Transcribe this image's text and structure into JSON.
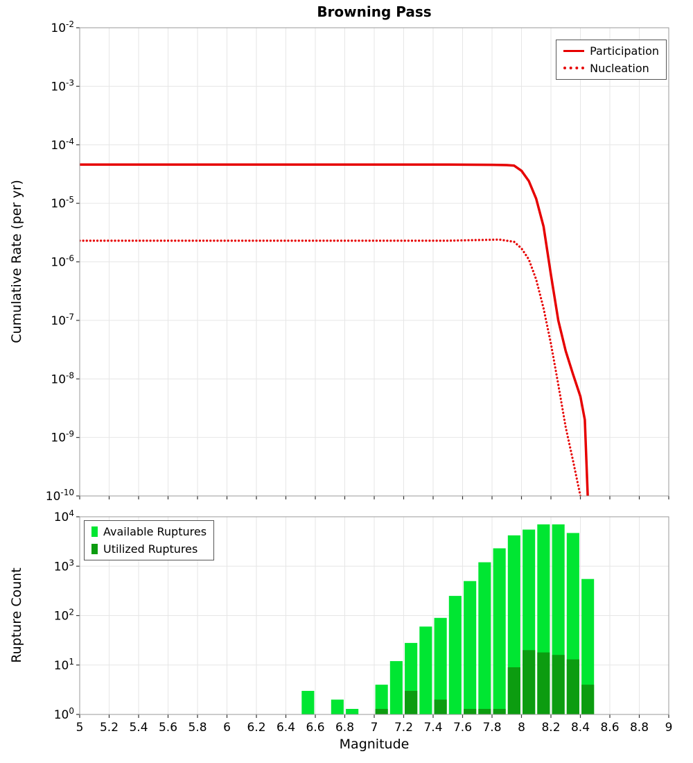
{
  "chart_data": [
    {
      "type": "line",
      "title": "Browning Pass",
      "xlabel": "Magnitude",
      "ylabel": "Cumulative Rate (per yr)",
      "xlim": [
        5,
        9
      ],
      "ylim": [
        1e-10,
        0.01
      ],
      "y_tick_exponents": [
        -2,
        -3,
        -4,
        -5,
        -6,
        -7,
        -8,
        -9,
        -10
      ],
      "x_tick_labels": [
        "5",
        "5.2",
        "5.4",
        "5.6",
        "5.8",
        "6",
        "6.2",
        "6.4",
        "6.6",
        "6.8",
        "7",
        "7.2",
        "7.4",
        "7.6",
        "7.8",
        "8",
        "8.2",
        "8.4",
        "8.6",
        "8.8",
        "9"
      ],
      "grid": true,
      "legend_position": "top-right",
      "series": [
        {
          "name": "Participation",
          "line_style": "solid",
          "color": "#e60000",
          "points": [
            [
              5.0,
              4.6e-05
            ],
            [
              5.5,
              4.6e-05
            ],
            [
              6.0,
              4.6e-05
            ],
            [
              6.5,
              4.6e-05
            ],
            [
              7.0,
              4.6e-05
            ],
            [
              7.5,
              4.6e-05
            ],
            [
              7.8,
              4.55e-05
            ],
            [
              7.9,
              4.5e-05
            ],
            [
              7.95,
              4.4e-05
            ],
            [
              8.0,
              3.6e-05
            ],
            [
              8.05,
              2.4e-05
            ],
            [
              8.1,
              1.2e-05
            ],
            [
              8.15,
              4e-06
            ],
            [
              8.2,
              6e-07
            ],
            [
              8.25,
              1e-07
            ],
            [
              8.3,
              3e-08
            ],
            [
              8.35,
              1.2e-08
            ],
            [
              8.4,
              5e-09
            ],
            [
              8.43,
              2e-09
            ],
            [
              8.45,
              1e-10
            ]
          ]
        },
        {
          "name": "Nucleation",
          "line_style": "dotted",
          "color": "#e60000",
          "points": [
            [
              5.0,
              2.3e-06
            ],
            [
              5.5,
              2.3e-06
            ],
            [
              6.0,
              2.3e-06
            ],
            [
              6.5,
              2.3e-06
            ],
            [
              7.0,
              2.3e-06
            ],
            [
              7.5,
              2.3e-06
            ],
            [
              7.85,
              2.4e-06
            ],
            [
              7.95,
              2.2e-06
            ],
            [
              8.0,
              1.7e-06
            ],
            [
              8.05,
              1.1e-06
            ],
            [
              8.1,
              5e-07
            ],
            [
              8.15,
              1.6e-07
            ],
            [
              8.2,
              4e-08
            ],
            [
              8.25,
              8e-09
            ],
            [
              8.3,
              1.5e-09
            ],
            [
              8.35,
              4e-10
            ],
            [
              8.4,
              1e-10
            ]
          ]
        }
      ]
    },
    {
      "type": "bar",
      "title": "",
      "xlabel": "Magnitude",
      "ylabel": "Rupture Count",
      "xlim": [
        5,
        9
      ],
      "ylim": [
        1,
        10000
      ],
      "y_tick_exponents": [
        4,
        3,
        2,
        1,
        0
      ],
      "x_tick_labels": [
        "5",
        "5.2",
        "5.4",
        "5.6",
        "5.8",
        "6",
        "6.2",
        "6.4",
        "6.6",
        "6.8",
        "7",
        "7.2",
        "7.4",
        "7.6",
        "7.8",
        "8",
        "8.2",
        "8.4",
        "8.6",
        "8.8",
        "9"
      ],
      "grid": true,
      "legend_position": "top-left",
      "bin_width": 0.1,
      "bar_width": 0.085,
      "series": [
        {
          "name": "Available Ruptures",
          "color": "#00e632"
        },
        {
          "name": "Utilized Ruptures",
          "color": "#0c9c10"
        }
      ],
      "bars": [
        {
          "m": 6.55,
          "available": 3,
          "utilized": 0
        },
        {
          "m": 6.75,
          "available": 2,
          "utilized": 0
        },
        {
          "m": 6.85,
          "available": 1,
          "utilized": 0
        },
        {
          "m": 7.05,
          "available": 4,
          "utilized": 1
        },
        {
          "m": 7.15,
          "available": 12,
          "utilized": 0
        },
        {
          "m": 7.25,
          "available": 28,
          "utilized": 3
        },
        {
          "m": 7.35,
          "available": 60,
          "utilized": 0
        },
        {
          "m": 7.45,
          "available": 90,
          "utilized": 2
        },
        {
          "m": 7.55,
          "available": 250,
          "utilized": 0
        },
        {
          "m": 7.65,
          "available": 500,
          "utilized": 1
        },
        {
          "m": 7.75,
          "available": 1200,
          "utilized": 1
        },
        {
          "m": 7.85,
          "available": 2300,
          "utilized": 1
        },
        {
          "m": 7.95,
          "available": 4200,
          "utilized": 9
        },
        {
          "m": 8.05,
          "available": 5500,
          "utilized": 20
        },
        {
          "m": 8.15,
          "available": 7000,
          "utilized": 18
        },
        {
          "m": 8.25,
          "available": 7000,
          "utilized": 16
        },
        {
          "m": 8.35,
          "available": 4700,
          "utilized": 13
        },
        {
          "m": 8.45,
          "available": 550,
          "utilized": 4
        }
      ]
    }
  ]
}
